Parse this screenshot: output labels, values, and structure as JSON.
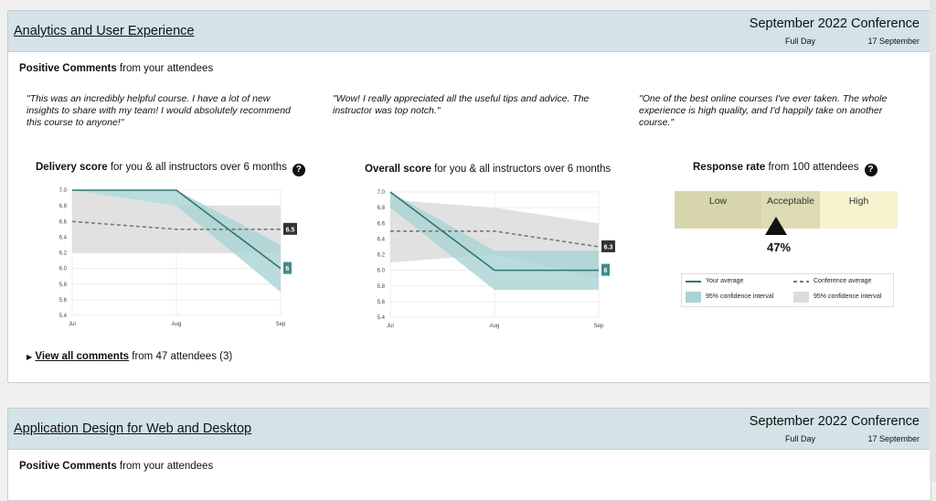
{
  "card1": {
    "title": "Analytics and User Experience",
    "conference": "September 2022 Conference",
    "day": "Full Day",
    "date": "17 September",
    "comments_bold": "Positive Comments",
    "comments_rest": " from your attendees",
    "quotes": [
      "\"This was an incredibly helpful course. I have a lot of new insights to share with my team! I would absolutely recommend this course to anyone!\"",
      "\"Wow! I really appreciated all the useful tips and advice. The instructor was top notch.\"",
      "\"One of the best online courses I've ever taken. The whole experience is high quality, and I'd happily take on another course.\""
    ],
    "delivery_bold": "Delivery score",
    "delivery_rest": " for you & all instructors over 6 months",
    "overall_bold": "Overall score",
    "overall_rest": " for you & all instructors over 6 months",
    "response_bold": "Response rate",
    "response_rest": " from 100 attendees",
    "help_glyph": "?",
    "rr_segments": [
      "Low",
      "Acceptable",
      "High"
    ],
    "rr_value": 0.47,
    "rr_label": "47%",
    "legend": {
      "your_avg": "Your average",
      "conf_avg": "Conference average",
      "ci1": "95% confidence interval",
      "ci2": "95% confidence interval"
    },
    "view_all_arrow": "▶",
    "view_all_bold": "View all comments",
    "view_all_rest": " from 47 attendees (3)"
  },
  "card2": {
    "title": "Application Design for Web and Desktop",
    "conference": "September 2022 Conference",
    "day": "Full Day",
    "date": "17 September",
    "comments_bold": "Positive Comments",
    "comments_rest": " from your attendees"
  },
  "colors": {
    "header_bg": "#d3e3e7",
    "your_line": "#2e7672",
    "your_band": "#a9d3d3",
    "conf_line": "#777777",
    "conf_band": "#dcdcdc",
    "conf_label_bg": "#333333",
    "your_label_bg": "#3f8c8c",
    "rr_low": "#d6d5ab",
    "rr_acceptable": "#dedcb6",
    "rr_high": "#f6f3cf"
  },
  "chart_data": [
    {
      "type": "line",
      "x": [
        "Jul",
        "Aug",
        "Sep"
      ],
      "ylim": [
        5.4,
        7.0
      ],
      "yticks": [
        5.4,
        5.6,
        5.8,
        6.0,
        6.2,
        6.4,
        6.6,
        6.8,
        7.0
      ],
      "series": [
        {
          "values": [
            7.0,
            7.0,
            6.0
          ],
          "band": [
            [
              7.0,
              7.0
            ],
            [
              6.8,
              7.0
            ],
            [
              5.7,
              6.3
            ]
          ]
        },
        {
          "values": [
            6.6,
            6.5,
            6.5
          ],
          "band": [
            [
              6.2,
              7.0
            ],
            [
              6.2,
              6.8
            ],
            [
              6.2,
              6.8
            ]
          ]
        }
      ],
      "end_labels": [
        "6",
        "6.5"
      ]
    },
    {
      "type": "line",
      "x": [
        "Jul",
        "Aug",
        "Sep"
      ],
      "ylim": [
        5.4,
        7.0
      ],
      "yticks": [
        5.4,
        5.6,
        5.8,
        6.0,
        6.2,
        6.4,
        6.6,
        6.8,
        7.0
      ],
      "series": [
        {
          "values": [
            7.0,
            6.0,
            6.0
          ],
          "band": [
            [
              6.8,
              7.0
            ],
            [
              5.75,
              6.25
            ],
            [
              5.75,
              6.25
            ]
          ]
        },
        {
          "values": [
            6.5,
            6.5,
            6.3
          ],
          "band": [
            [
              6.1,
              6.9
            ],
            [
              6.2,
              6.8
            ],
            [
              5.9,
              6.6
            ]
          ]
        }
      ],
      "end_labels": [
        "6",
        "6.3"
      ]
    }
  ]
}
